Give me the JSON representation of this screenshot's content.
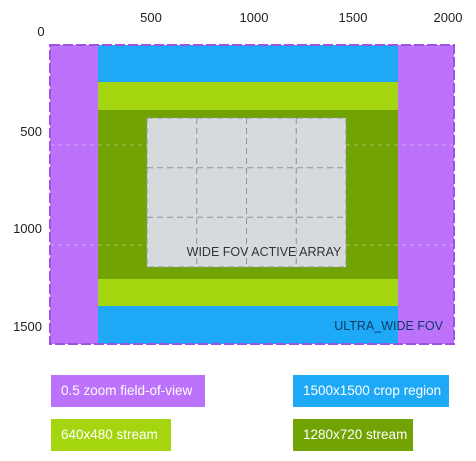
{
  "axis": {
    "x_ticks": [
      0,
      500,
      1000,
      1500,
      2000
    ],
    "y_ticks": [
      500,
      1000,
      1500
    ],
    "x_tick_labels": [
      "500",
      "1000",
      "1500",
      "2000"
    ],
    "origin_label": "0",
    "y_tick_labels": [
      "500",
      "1000",
      "1500"
    ],
    "x_range": [
      0,
      2000
    ],
    "y_range": [
      0,
      1500
    ]
  },
  "regions": {
    "ultra_wide_fov": {
      "label": "ULTRA_WIDE FOV",
      "x": [
        0,
        2000
      ],
      "y": [
        0,
        1500
      ],
      "border_color": "#b05ff0"
    },
    "zoom_fov": {
      "x": [
        0,
        2000
      ],
      "y": [
        0,
        1500
      ],
      "color": "#bc72fb"
    },
    "crop_region": {
      "x": [
        250,
        1750
      ],
      "y": [
        0,
        1500
      ],
      "color": "#1ea9f7"
    },
    "stream_640x480": {
      "x": [
        250,
        1750
      ],
      "y": [
        188,
        1312
      ],
      "color": "#a4d50f"
    },
    "stream_1280x720": {
      "x": [
        250,
        1750
      ],
      "y": [
        328,
        1172
      ],
      "color": "#72a304"
    },
    "wide_active_array": {
      "label": "WIDE FOV ACTIVE ARRAY",
      "x": [
        500,
        1500
      ],
      "y": [
        375,
        1125
      ],
      "color": "#d6dadd",
      "grid_x": [
        750,
        1000,
        1250
      ],
      "grid_y": [
        625,
        875
      ]
    }
  },
  "legend": {
    "zoom": {
      "label": "0.5 zoom field-of-view",
      "color": "#bc72fb"
    },
    "crop": {
      "label": "1500x1500 crop region",
      "color": "#1ea9f7"
    },
    "stream_640": {
      "label": "640x480 stream",
      "color": "#a4d50f"
    },
    "stream_1280": {
      "label": "1280x720 stream",
      "color": "#72a304"
    }
  }
}
